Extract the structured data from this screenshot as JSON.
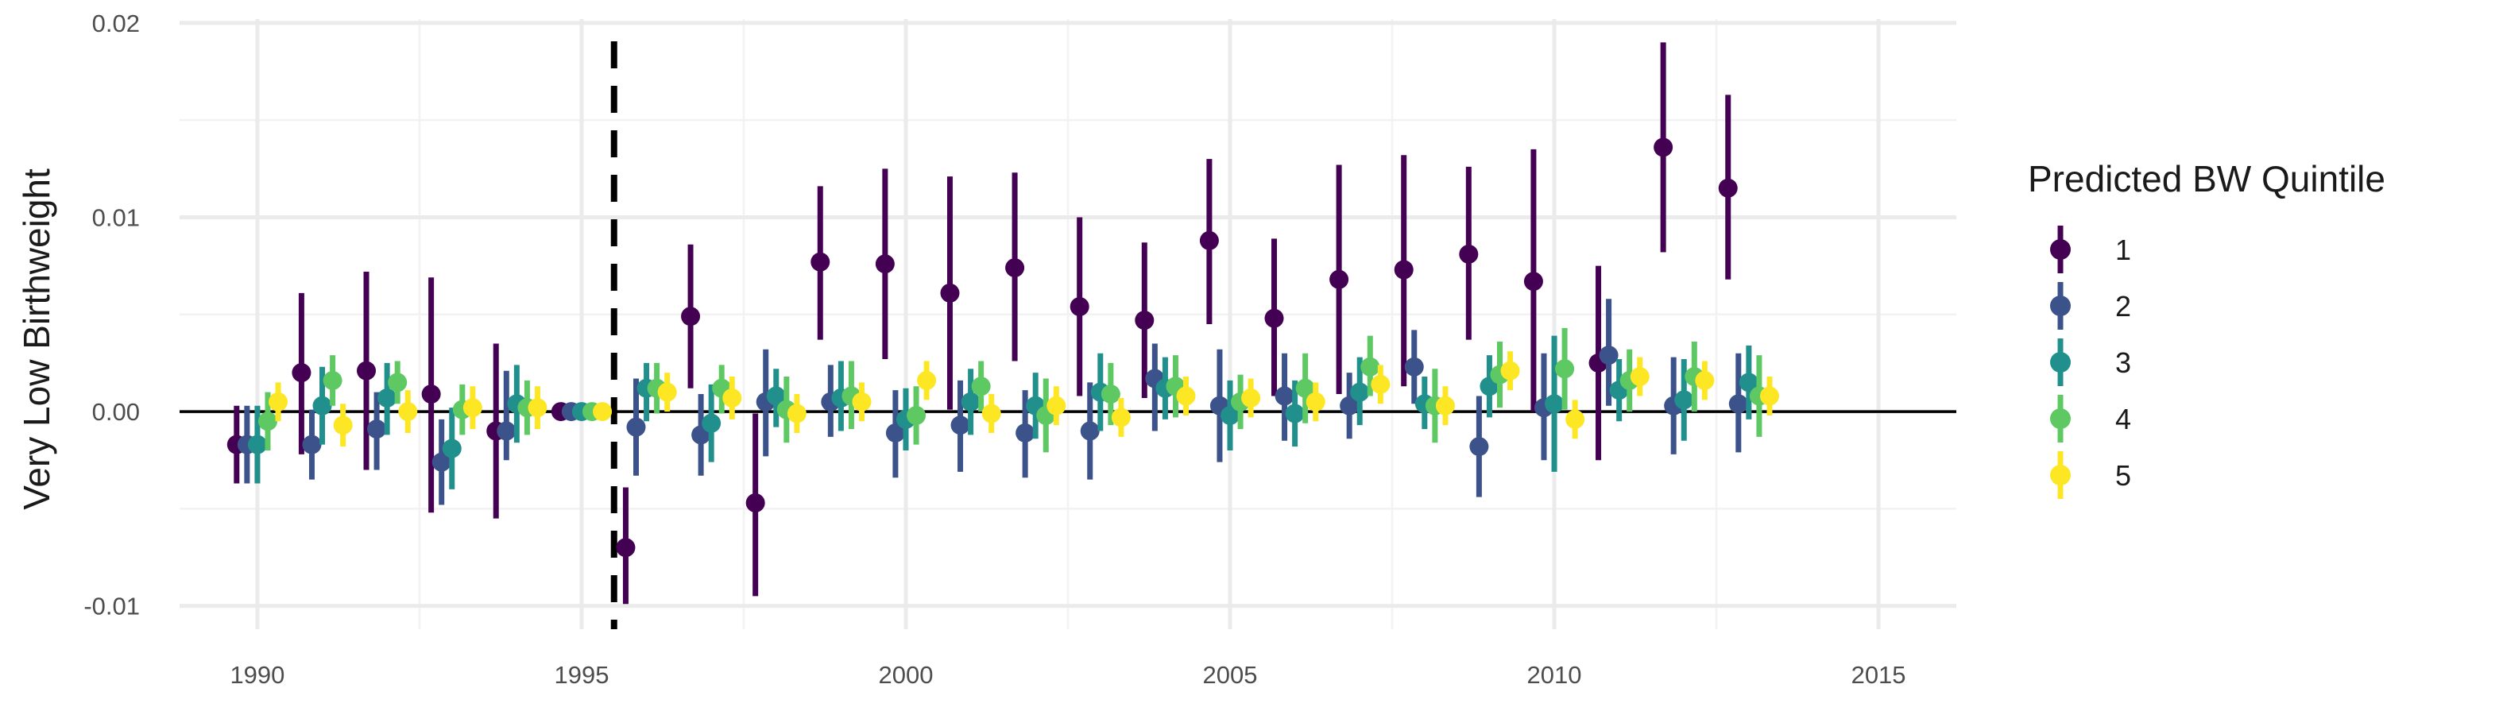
{
  "chart_data": {
    "type": "scatter",
    "subtype": "point-range (estimate with confidence interval), dodged by group",
    "title": "",
    "xlabel": "",
    "ylabel": "Very Low Birthweight",
    "xlim": [
      1988.8,
      2016.2
    ],
    "ylim": [
      -0.0112,
      0.0202
    ],
    "x_ticks": [
      1990,
      1995,
      2000,
      2005,
      2010,
      2015
    ],
    "x_tick_labels": [
      "1990",
      "1995",
      "2000",
      "2005",
      "2010",
      "2015"
    ],
    "y_ticks": [
      -0.01,
      0.0,
      0.01,
      0.02
    ],
    "y_tick_labels": [
      "-0.01",
      "0.00",
      "0.01",
      "0.02"
    ],
    "reference_lines": {
      "horizontal_y": 0,
      "vertical_dashed_x": 1995.5
    },
    "grid": true,
    "legend": {
      "title": "Predicted BW Quintile",
      "placement": "right"
    },
    "years": [
      1990,
      1991,
      1992,
      1993,
      1994,
      1995,
      1996,
      1997,
      1998,
      1999,
      2000,
      2001,
      2002,
      2003,
      2004,
      2005,
      2006,
      2007,
      2008,
      2009,
      2010,
      2011,
      2012,
      2013
    ],
    "series": [
      {
        "name": "1",
        "color": "#440154",
        "estimates": [
          -0.0017,
          0.002,
          0.0021,
          0.0009,
          -0.001,
          0.0,
          -0.007,
          0.0049,
          -0.0047,
          0.0077,
          0.0076,
          0.0061,
          0.0074,
          0.0054,
          0.0047,
          0.0088,
          0.0048,
          0.0068,
          0.0073,
          0.0081,
          0.0067,
          0.0025,
          0.0136,
          0.0115
        ],
        "lower": [
          -0.0037,
          -0.0022,
          -0.003,
          -0.0052,
          -0.0055,
          0.0,
          -0.0099,
          0.0012,
          -0.0095,
          0.0037,
          0.0027,
          0.0001,
          0.0026,
          0.0008,
          0.0007,
          0.0045,
          0.0008,
          0.0009,
          0.0013,
          0.0037,
          0.0,
          -0.0025,
          0.0082,
          0.0068
        ],
        "upper": [
          0.0003,
          0.0061,
          0.0072,
          0.0069,
          0.0035,
          0.0,
          -0.0039,
          0.0086,
          -0.0001,
          0.0116,
          0.0125,
          0.0121,
          0.0123,
          0.01,
          0.0087,
          0.013,
          0.0089,
          0.0127,
          0.0132,
          0.0126,
          0.0135,
          0.0075,
          0.019,
          0.0163
        ]
      },
      {
        "name": "2",
        "color": "#3b528b",
        "estimates": [
          -0.0017,
          -0.0017,
          -0.0009,
          -0.0026,
          -0.001,
          0.0,
          -0.0008,
          -0.0012,
          0.0005,
          0.0005,
          -0.0011,
          -0.0007,
          -0.0011,
          -0.001,
          0.0017,
          0.0003,
          0.0008,
          0.0003,
          0.0023,
          -0.0018,
          0.0002,
          0.0029,
          0.0003,
          0.0004
        ],
        "lower": [
          -0.0037,
          -0.0035,
          -0.003,
          -0.0048,
          -0.0025,
          0.0,
          -0.0033,
          -0.0033,
          -0.0023,
          -0.0013,
          -0.0034,
          -0.0031,
          -0.0034,
          -0.0035,
          -0.001,
          -0.0026,
          -0.0015,
          -0.0014,
          0.0004,
          -0.0044,
          -0.0025,
          0.0003,
          -0.0022,
          -0.0021
        ],
        "upper": [
          0.0003,
          0.0001,
          0.001,
          -0.0004,
          0.0021,
          0.0,
          0.0017,
          0.0009,
          0.0032,
          0.0024,
          0.0011,
          0.0016,
          0.0011,
          0.0015,
          0.0035,
          0.0032,
          0.003,
          0.002,
          0.0042,
          0.0008,
          0.003,
          0.0058,
          0.0028,
          0.003
        ]
      },
      {
        "name": "3",
        "color": "#21908c",
        "estimates": [
          -0.0017,
          0.0003,
          0.0007,
          -0.0019,
          0.0004,
          0.0,
          0.0012,
          -0.0006,
          0.0008,
          0.0007,
          -0.0004,
          0.0005,
          0.0003,
          0.001,
          0.0012,
          -0.0002,
          -0.0001,
          0.001,
          0.0004,
          0.0013,
          0.0004,
          0.0011,
          0.0006,
          0.0015
        ],
        "lower": [
          -0.0037,
          -0.0017,
          -0.0012,
          -0.004,
          -0.0016,
          0.0,
          -0.0005,
          -0.0026,
          -0.0008,
          -0.001,
          -0.002,
          -0.0012,
          -0.0014,
          -0.001,
          -0.0004,
          -0.002,
          -0.0018,
          -0.0007,
          -0.0009,
          -0.0003,
          -0.0031,
          -0.0005,
          -0.0015,
          -0.0004
        ],
        "upper": [
          0.0003,
          0.0023,
          0.0025,
          0.0002,
          0.0024,
          0.0,
          0.0025,
          0.0014,
          0.0022,
          0.0026,
          0.0012,
          0.0022,
          0.002,
          0.003,
          0.0028,
          0.0016,
          0.0016,
          0.0028,
          0.0018,
          0.0029,
          0.0039,
          0.0027,
          0.0027,
          0.0034
        ]
      },
      {
        "name": "4",
        "color": "#5ec962",
        "estimates": [
          -0.0005,
          0.0016,
          0.0015,
          0.0001,
          0.0002,
          0.0,
          0.0012,
          0.0012,
          0.0001,
          0.0008,
          -0.0002,
          0.0013,
          -0.0002,
          0.0009,
          0.0013,
          0.0005,
          0.0012,
          0.0023,
          0.0003,
          0.0019,
          0.0022,
          0.0016,
          0.0018,
          0.0008
        ],
        "lower": [
          -0.002,
          0.0003,
          0.0004,
          -0.0012,
          -0.0012,
          0.0,
          -0.0001,
          -0.0001,
          -0.0016,
          -0.0009,
          -0.0017,
          0.0,
          -0.0021,
          -0.0007,
          -0.0003,
          -0.0009,
          -0.0006,
          0.0008,
          -0.0016,
          0.0002,
          0.0001,
          0.0,
          0.0,
          -0.0013
        ],
        "upper": [
          0.001,
          0.0029,
          0.0026,
          0.0014,
          0.0016,
          0.0,
          0.0025,
          0.0024,
          0.0018,
          0.0026,
          0.0013,
          0.0026,
          0.0017,
          0.0025,
          0.0029,
          0.0019,
          0.003,
          0.0039,
          0.0022,
          0.0036,
          0.0043,
          0.0032,
          0.0036,
          0.0029
        ]
      },
      {
        "name": "5",
        "color": "#fde725",
        "estimates": [
          0.0005,
          -0.0007,
          0.0,
          0.0002,
          0.0002,
          0.0,
          0.001,
          0.0007,
          -0.0001,
          0.0005,
          0.0016,
          -0.0001,
          0.0003,
          -0.0003,
          0.0008,
          0.0007,
          0.0005,
          0.0014,
          0.0003,
          0.0021,
          -0.0004,
          0.0018,
          0.0016,
          0.0008
        ],
        "lower": [
          -0.0005,
          -0.0018,
          -0.0011,
          -0.0009,
          -0.0009,
          0.0,
          0.0,
          -0.0004,
          -0.0011,
          -0.0005,
          0.0006,
          -0.0011,
          -0.0007,
          -0.0013,
          -0.0002,
          -0.0003,
          -0.0005,
          0.0004,
          -0.0007,
          0.0011,
          -0.0014,
          0.0008,
          0.0006,
          -0.0002
        ],
        "upper": [
          0.0015,
          0.0004,
          0.0011,
          0.0013,
          0.0013,
          0.0,
          0.002,
          0.0018,
          0.0009,
          0.0015,
          0.0026,
          0.0009,
          0.0013,
          0.0007,
          0.0018,
          0.0017,
          0.0015,
          0.0024,
          0.0013,
          0.0031,
          0.0006,
          0.0028,
          0.0026,
          0.0018
        ]
      }
    ]
  }
}
